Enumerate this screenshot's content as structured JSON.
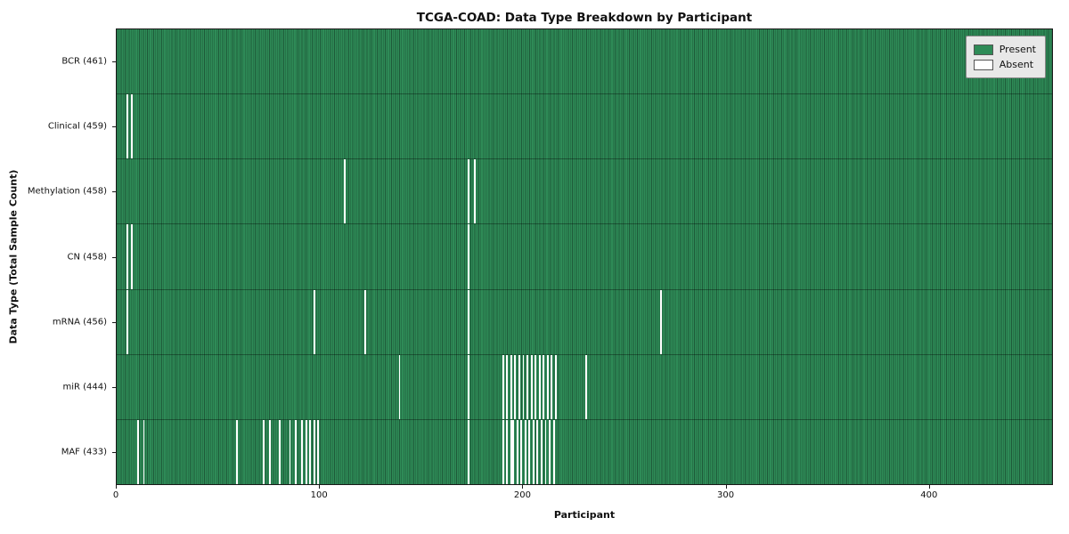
{
  "chart_data": {
    "type": "heatmap",
    "title": "TCGA-COAD: Data Type Breakdown by Participant",
    "xlabel": "Participant",
    "ylabel": "Data Type (Total Sample Count)",
    "n_participants": 461,
    "x_ticks": [
      0,
      100,
      200,
      300,
      400
    ],
    "grid": true,
    "colors": {
      "present": "#2e8b57",
      "absent": "#ffffff",
      "column_line": "rgba(0,0,0,0.35)",
      "legend_bg": "#e8e8e8"
    },
    "legend": {
      "position": "upper right",
      "items": [
        {
          "label": "Present",
          "color": "#2e8b57"
        },
        {
          "label": "Absent",
          "color": "#ffffff"
        }
      ]
    },
    "rows": [
      {
        "label": "BCR (461)",
        "count": 461,
        "absent": []
      },
      {
        "label": "Clinical (459)",
        "count": 459,
        "absent": [
          5,
          7
        ]
      },
      {
        "label": "Methylation (458)",
        "count": 458,
        "absent": [
          112,
          173,
          176
        ]
      },
      {
        "label": "CN (458)",
        "count": 458,
        "absent": [
          5,
          7,
          173
        ]
      },
      {
        "label": "mRNA (456)",
        "count": 456,
        "absent": [
          5,
          97,
          122,
          173,
          268
        ]
      },
      {
        "label": "miR (444)",
        "count": 444,
        "absent": [
          139,
          173,
          190,
          192,
          194,
          196,
          198,
          200,
          202,
          204,
          206,
          208,
          210,
          212,
          214,
          216,
          231
        ]
      },
      {
        "label": "MAF (433)",
        "count": 433,
        "absent": [
          10,
          13,
          59,
          72,
          75,
          80,
          85,
          88,
          91,
          93,
          95,
          97,
          99,
          173,
          190,
          192,
          194,
          195,
          197,
          199,
          201,
          203,
          205,
          207,
          209,
          211,
          213,
          215
        ]
      }
    ]
  }
}
